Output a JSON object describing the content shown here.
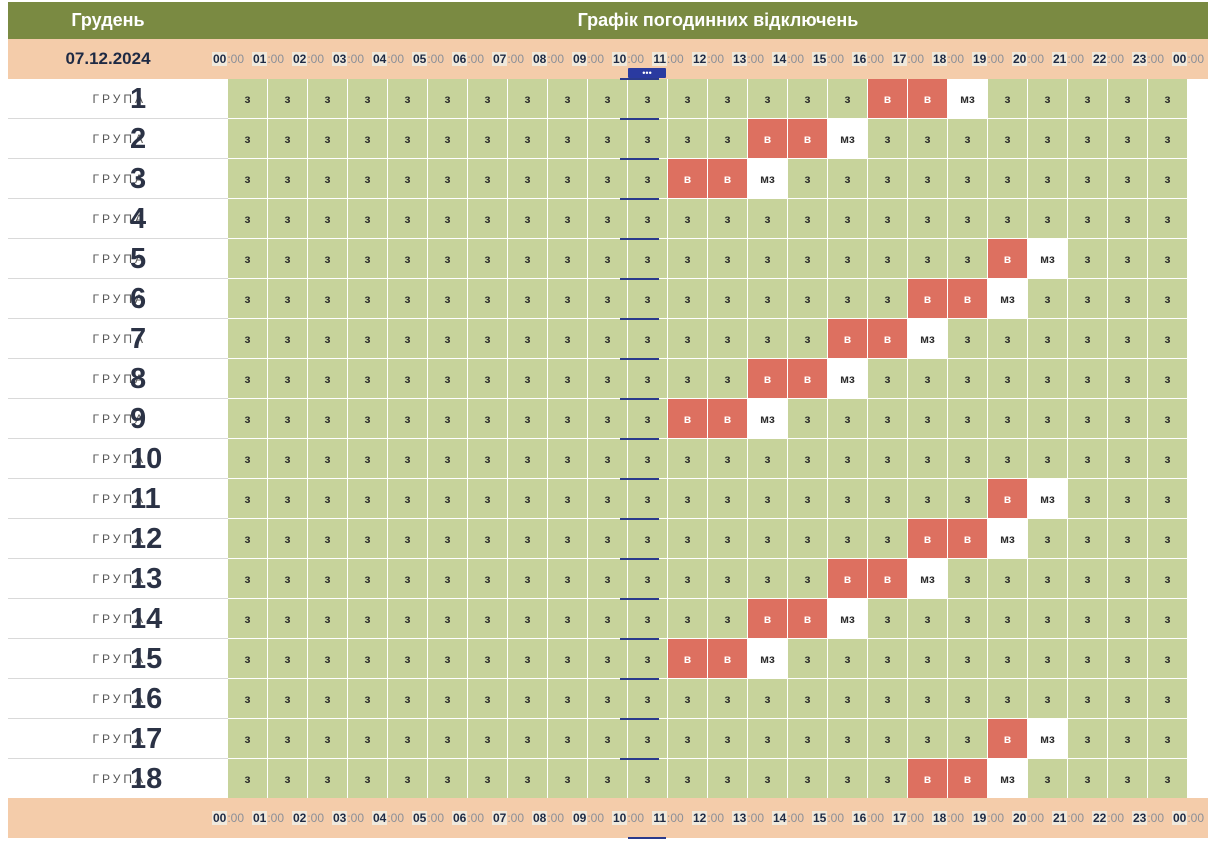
{
  "header": {
    "month": "Грудень",
    "title": "Графік погодинних відключень"
  },
  "date": "07.12.2024",
  "group_word": "ГРУПА",
  "hours": [
    "00",
    "01",
    "02",
    "03",
    "04",
    "05",
    "06",
    "07",
    "08",
    "09",
    "10",
    "11",
    "12",
    "13",
    "14",
    "15",
    "16",
    "17",
    "18",
    "19",
    "20",
    "21",
    "22",
    "23",
    "00"
  ],
  "minutes": ":00",
  "current_marker": "•••",
  "status_labels": {
    "on": "з",
    "off": "в",
    "maybe": "мз"
  },
  "colors": {
    "header": "#7a8a42",
    "timebar": "#f4ccaa",
    "on": "#c7d39b",
    "off": "#dd7060",
    "maybe": "#aeb9bf",
    "marker": "#2a3aa0"
  },
  "groups": [
    {
      "number": "1",
      "hours": [
        "on",
        "on",
        "on",
        "on",
        "on",
        "on",
        "on",
        "on",
        "on",
        "on",
        "on",
        "on",
        "on",
        "on",
        "on",
        "on",
        "off",
        "off",
        "maybe",
        "on",
        "on",
        "on",
        "on",
        "on"
      ]
    },
    {
      "number": "2",
      "hours": [
        "on",
        "on",
        "on",
        "on",
        "on",
        "on",
        "on",
        "on",
        "on",
        "on",
        "on",
        "on",
        "on",
        "off",
        "off",
        "maybe",
        "on",
        "on",
        "on",
        "on",
        "on",
        "on",
        "on",
        "on"
      ]
    },
    {
      "number": "3",
      "hours": [
        "on",
        "on",
        "on",
        "on",
        "on",
        "on",
        "on",
        "on",
        "on",
        "on",
        "on",
        "off",
        "off",
        "maybe",
        "on",
        "on",
        "on",
        "on",
        "on",
        "on",
        "on",
        "on",
        "on",
        "on"
      ]
    },
    {
      "number": "4",
      "hours": [
        "on",
        "on",
        "on",
        "on",
        "on",
        "on",
        "on",
        "on",
        "on",
        "on",
        "on",
        "on",
        "on",
        "on",
        "on",
        "on",
        "on",
        "on",
        "on",
        "on",
        "on",
        "on",
        "on",
        "on"
      ]
    },
    {
      "number": "5",
      "hours": [
        "on",
        "on",
        "on",
        "on",
        "on",
        "on",
        "on",
        "on",
        "on",
        "on",
        "on",
        "on",
        "on",
        "on",
        "on",
        "on",
        "on",
        "on",
        "on",
        "off",
        "maybe",
        "on",
        "on",
        "on"
      ]
    },
    {
      "number": "6",
      "hours": [
        "on",
        "on",
        "on",
        "on",
        "on",
        "on",
        "on",
        "on",
        "on",
        "on",
        "on",
        "on",
        "on",
        "on",
        "on",
        "on",
        "on",
        "off",
        "off",
        "maybe",
        "on",
        "on",
        "on",
        "on"
      ]
    },
    {
      "number": "7",
      "hours": [
        "on",
        "on",
        "on",
        "on",
        "on",
        "on",
        "on",
        "on",
        "on",
        "on",
        "on",
        "on",
        "on",
        "on",
        "on",
        "off",
        "off",
        "maybe",
        "on",
        "on",
        "on",
        "on",
        "on",
        "on"
      ]
    },
    {
      "number": "8",
      "hours": [
        "on",
        "on",
        "on",
        "on",
        "on",
        "on",
        "on",
        "on",
        "on",
        "on",
        "on",
        "on",
        "on",
        "off",
        "off",
        "maybe",
        "on",
        "on",
        "on",
        "on",
        "on",
        "on",
        "on",
        "on"
      ]
    },
    {
      "number": "9",
      "hours": [
        "on",
        "on",
        "on",
        "on",
        "on",
        "on",
        "on",
        "on",
        "on",
        "on",
        "on",
        "off",
        "off",
        "maybe",
        "on",
        "on",
        "on",
        "on",
        "on",
        "on",
        "on",
        "on",
        "on",
        "on"
      ]
    },
    {
      "number": "10",
      "hours": [
        "on",
        "on",
        "on",
        "on",
        "on",
        "on",
        "on",
        "on",
        "on",
        "on",
        "on",
        "on",
        "on",
        "on",
        "on",
        "on",
        "on",
        "on",
        "on",
        "on",
        "on",
        "on",
        "on",
        "on"
      ]
    },
    {
      "number": "11",
      "hours": [
        "on",
        "on",
        "on",
        "on",
        "on",
        "on",
        "on",
        "on",
        "on",
        "on",
        "on",
        "on",
        "on",
        "on",
        "on",
        "on",
        "on",
        "on",
        "on",
        "off",
        "maybe",
        "on",
        "on",
        "on"
      ]
    },
    {
      "number": "12",
      "hours": [
        "on",
        "on",
        "on",
        "on",
        "on",
        "on",
        "on",
        "on",
        "on",
        "on",
        "on",
        "on",
        "on",
        "on",
        "on",
        "on",
        "on",
        "off",
        "off",
        "maybe",
        "on",
        "on",
        "on",
        "on"
      ]
    },
    {
      "number": "13",
      "hours": [
        "on",
        "on",
        "on",
        "on",
        "on",
        "on",
        "on",
        "on",
        "on",
        "on",
        "on",
        "on",
        "on",
        "on",
        "on",
        "off",
        "off",
        "maybe",
        "on",
        "on",
        "on",
        "on",
        "on",
        "on"
      ]
    },
    {
      "number": "14",
      "hours": [
        "on",
        "on",
        "on",
        "on",
        "on",
        "on",
        "on",
        "on",
        "on",
        "on",
        "on",
        "on",
        "on",
        "off",
        "off",
        "maybe",
        "on",
        "on",
        "on",
        "on",
        "on",
        "on",
        "on",
        "on"
      ]
    },
    {
      "number": "15",
      "hours": [
        "on",
        "on",
        "on",
        "on",
        "on",
        "on",
        "on",
        "on",
        "on",
        "on",
        "on",
        "off",
        "off",
        "maybe",
        "on",
        "on",
        "on",
        "on",
        "on",
        "on",
        "on",
        "on",
        "on",
        "on"
      ]
    },
    {
      "number": "16",
      "hours": [
        "on",
        "on",
        "on",
        "on",
        "on",
        "on",
        "on",
        "on",
        "on",
        "on",
        "on",
        "on",
        "on",
        "on",
        "on",
        "on",
        "on",
        "on",
        "on",
        "on",
        "on",
        "on",
        "on",
        "on"
      ]
    },
    {
      "number": "17",
      "hours": [
        "on",
        "on",
        "on",
        "on",
        "on",
        "on",
        "on",
        "on",
        "on",
        "on",
        "on",
        "on",
        "on",
        "on",
        "on",
        "on",
        "on",
        "on",
        "on",
        "off",
        "maybe",
        "on",
        "on",
        "on"
      ]
    },
    {
      "number": "18",
      "hours": [
        "on",
        "on",
        "on",
        "on",
        "on",
        "on",
        "on",
        "on",
        "on",
        "on",
        "on",
        "on",
        "on",
        "on",
        "on",
        "on",
        "on",
        "off",
        "off",
        "maybe",
        "on",
        "on",
        "on",
        "on"
      ]
    }
  ]
}
